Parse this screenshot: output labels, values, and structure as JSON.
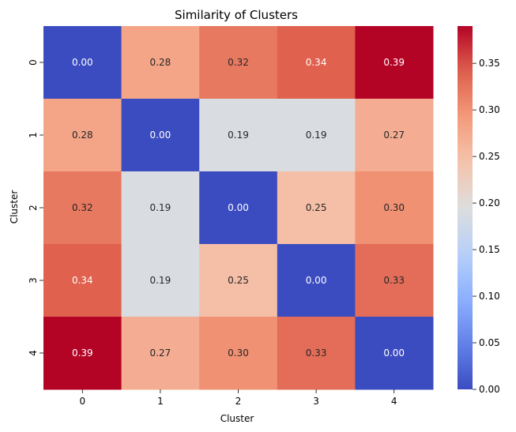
{
  "chart_data": {
    "type": "heatmap",
    "title": "Similarity of Clusters",
    "xlabel": "Cluster",
    "ylabel": "Cluster",
    "x_categories": [
      "0",
      "1",
      "2",
      "3",
      "4"
    ],
    "y_categories": [
      "0",
      "1",
      "2",
      "3",
      "4"
    ],
    "values": [
      [
        0.0,
        0.28,
        0.32,
        0.34,
        0.39
      ],
      [
        0.28,
        0.0,
        0.19,
        0.19,
        0.27
      ],
      [
        0.32,
        0.19,
        0.0,
        0.25,
        0.3
      ],
      [
        0.34,
        0.19,
        0.25,
        0.0,
        0.33
      ],
      [
        0.39,
        0.27,
        0.3,
        0.33,
        0.0
      ]
    ],
    "value_format_decimals": 2,
    "colormap": "coolwarm",
    "vmin": 0.0,
    "vmax": 0.39,
    "colorbar_ticks": [
      0.0,
      0.05,
      0.1,
      0.15,
      0.2,
      0.25,
      0.3,
      0.35
    ],
    "colorbar_tick_labels": [
      "0.00",
      "0.05",
      "0.10",
      "0.15",
      "0.20",
      "0.25",
      "0.30",
      "0.35"
    ]
  }
}
